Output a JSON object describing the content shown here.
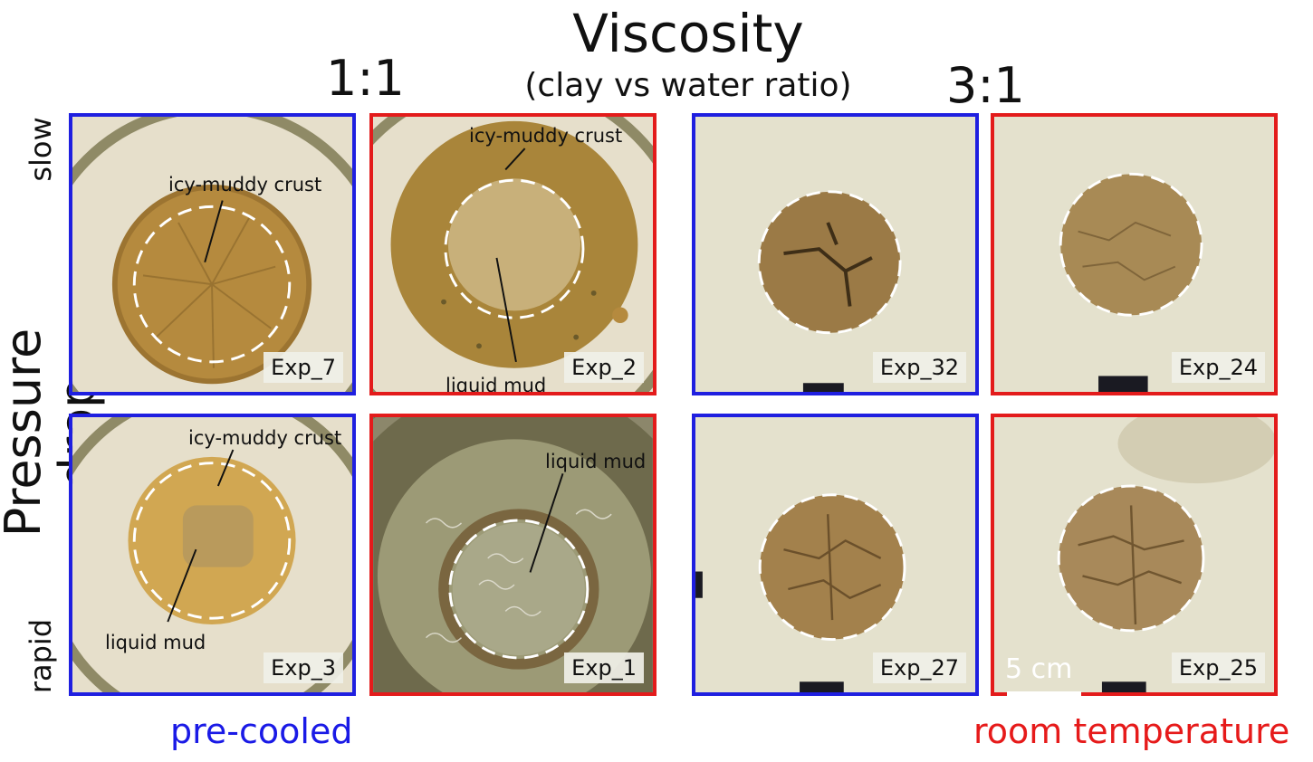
{
  "title": "Viscosity",
  "subtitle": "(clay vs water ratio)",
  "ratios": {
    "left": "1:1",
    "right": "3:1"
  },
  "y_axis": {
    "label": "Pressure drop",
    "top": "slow",
    "bottom": "rapid"
  },
  "footer": {
    "left": "pre-cooled",
    "right": "room temperature"
  },
  "colors": {
    "pre_cooled": "#1f1fe0",
    "room_temperature": "#e31b1b"
  },
  "panels": [
    {
      "exp": "Exp_7",
      "annotations": [
        "icy-muddy crust"
      ]
    },
    {
      "exp": "Exp_2",
      "annotations": [
        "icy-muddy crust",
        "liquid mud"
      ]
    },
    {
      "exp": "Exp_32",
      "annotations": []
    },
    {
      "exp": "Exp_24",
      "annotations": []
    },
    {
      "exp": "Exp_3",
      "annotations": [
        "icy-muddy crust",
        "liquid mud"
      ]
    },
    {
      "exp": "Exp_1",
      "annotations": [
        "liquid mud"
      ]
    },
    {
      "exp": "Exp_27",
      "annotations": []
    },
    {
      "exp": "Exp_25",
      "annotations": []
    }
  ],
  "scale_bar": "5 cm"
}
